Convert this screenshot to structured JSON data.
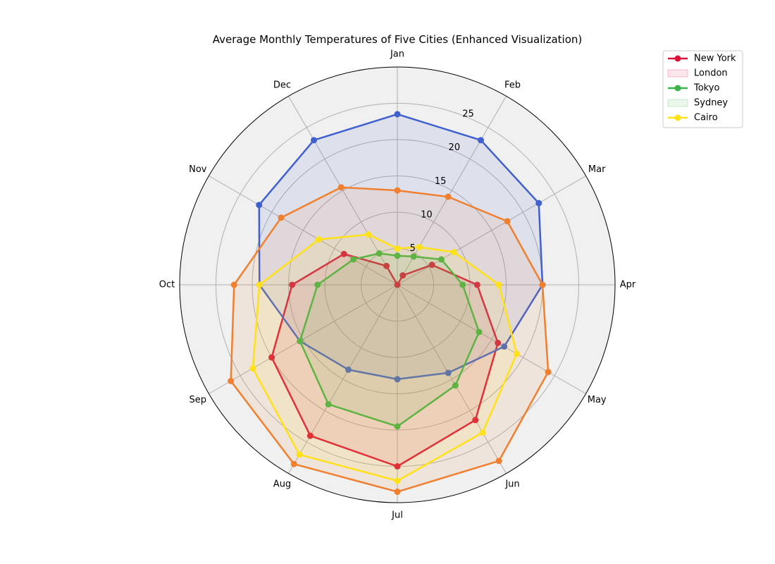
{
  "chart_data": {
    "type": "radar",
    "title": "Average Monthly Temperatures of Five Cities (Enhanced Visualization)",
    "categories": [
      "Jan",
      "Feb",
      "Mar",
      "Apr",
      "May",
      "Jun",
      "Jul",
      "Aug",
      "Sep",
      "Oct",
      "Nov",
      "Dec"
    ],
    "rlim": [
      0,
      30
    ],
    "rticks": [
      5,
      10,
      15,
      20,
      25
    ],
    "grid": true,
    "legend_position": "upper-right-outside",
    "background_color": "#f0f0f0",
    "series": [
      {
        "color": "#dc143c",
        "values": [
          0,
          1.5,
          5.5,
          11,
          16,
          21.5,
          25,
          24,
          20,
          14.5,
          8.5,
          3
        ]
      },
      {
        "color": "#4060d0",
        "values": [
          23.5,
          23,
          22.5,
          20,
          17,
          14,
          13,
          13.5,
          15.5,
          19,
          22,
          23
        ]
      },
      {
        "color": "#3cb44b",
        "values": [
          4,
          4.5,
          7,
          9,
          13,
          16,
          19.5,
          19,
          15.5,
          11,
          7,
          5
        ]
      },
      {
        "color": "#f08030",
        "values": [
          13,
          14,
          17.5,
          20,
          24,
          28,
          28.5,
          28.5,
          26.5,
          22.5,
          18.5,
          15.5
        ]
      },
      {
        "color": "#ffe119",
        "values": [
          5,
          6,
          9,
          14,
          19,
          23.5,
          27,
          27,
          23,
          19,
          12.5,
          8
        ]
      }
    ],
    "legend": [
      {
        "label": "New York",
        "color": "#dc143c",
        "style": "line"
      },
      {
        "label": "London",
        "color": "#dc143c",
        "style": "patch"
      },
      {
        "label": "Tokyo",
        "color": "#3cb44b",
        "style": "line"
      },
      {
        "label": "Sydney",
        "color": "#3cb44b",
        "style": "patch"
      },
      {
        "label": "Cairo",
        "color": "#ffe119",
        "style": "line"
      }
    ]
  }
}
